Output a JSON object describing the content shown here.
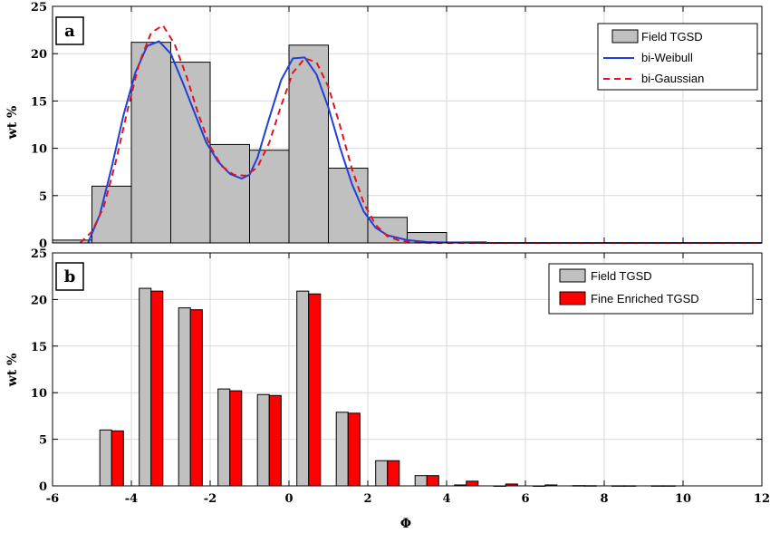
{
  "chart_data": [
    {
      "type": "bar",
      "panel_label": "a",
      "xlim": [
        -6,
        12
      ],
      "ylim": [
        0,
        25
      ],
      "xticks": [
        -6,
        -4,
        -2,
        0,
        2,
        4,
        6,
        8,
        10,
        12
      ],
      "yticks": [
        0,
        5,
        10,
        15,
        20,
        25
      ],
      "xlabel": "",
      "ylabel": "wt %",
      "grid": true,
      "legend_position": "top-right",
      "legend": [
        "Field TGSD",
        "bi-Weibull",
        "bi-Gaussian"
      ],
      "bins": {
        "name": "Field TGSD",
        "bin_width": 1,
        "bin_starts": [
          -6,
          -5,
          -4,
          -3,
          -2,
          -1,
          0,
          1,
          2,
          3,
          4
        ],
        "values": [
          0.3,
          6.0,
          21.2,
          19.1,
          10.4,
          9.8,
          20.9,
          7.9,
          2.7,
          1.1,
          0.1
        ],
        "color": "#c0c0c0"
      },
      "lines": [
        {
          "name": "bi-Weibull",
          "color": "#1f3fdc",
          "dash": "solid",
          "x": [
            -5.1,
            -4.8,
            -4.5,
            -4.2,
            -3.9,
            -3.6,
            -3.3,
            -3.0,
            -2.7,
            -2.4,
            -2.1,
            -1.8,
            -1.5,
            -1.2,
            -1.0,
            -0.8,
            -0.5,
            -0.2,
            0.1,
            0.4,
            0.7,
            1.0,
            1.3,
            1.6,
            1.9,
            2.2,
            2.5,
            3.0,
            3.5,
            4.0,
            5.0,
            7.0,
            9.0,
            12.0
          ],
          "y": [
            0,
            3.0,
            8.0,
            13.5,
            18.0,
            20.8,
            21.3,
            20.0,
            17.0,
            13.8,
            10.6,
            8.6,
            7.3,
            6.8,
            7.2,
            9.0,
            13.2,
            17.2,
            19.5,
            19.6,
            17.8,
            14.3,
            10.0,
            6.2,
            3.3,
            1.6,
            0.8,
            0.3,
            0.1,
            0.05,
            0,
            0,
            0,
            0
          ]
        },
        {
          "name": "bi-Gaussian",
          "color": "#e0141e",
          "dash": "dashed",
          "x": [
            -5.3,
            -5.0,
            -4.7,
            -4.4,
            -4.1,
            -3.8,
            -3.5,
            -3.2,
            -2.9,
            -2.6,
            -2.3,
            -2.0,
            -1.7,
            -1.4,
            -1.1,
            -0.8,
            -0.5,
            -0.2,
            0.1,
            0.4,
            0.7,
            1.0,
            1.3,
            1.6,
            1.9,
            2.2,
            2.5,
            2.8,
            3.2,
            3.8,
            5.0,
            8.0,
            12.0
          ],
          "y": [
            0,
            1.2,
            3.8,
            8.5,
            14.0,
            19.0,
            22.2,
            23.0,
            21.0,
            17.6,
            13.6,
            10.2,
            8.1,
            7.2,
            7.1,
            8.0,
            10.6,
            14.5,
            18.0,
            19.5,
            19.1,
            16.5,
            12.3,
            7.8,
            4.2,
            1.9,
            0.7,
            0.25,
            0.05,
            0,
            0,
            0,
            0
          ]
        }
      ]
    },
    {
      "type": "bar",
      "panel_label": "b",
      "xlim": [
        -6,
        12
      ],
      "ylim": [
        0,
        25
      ],
      "xticks": [
        -6,
        -4,
        -2,
        0,
        2,
        4,
        6,
        8,
        10,
        12
      ],
      "yticks": [
        0,
        5,
        10,
        15,
        20,
        25
      ],
      "xlabel": "Φ",
      "ylabel": "wt %",
      "grid": true,
      "legend_position": "top-right",
      "legend": [
        "Field TGSD",
        "Fine Enriched TGSD"
      ],
      "categories": [
        -4.5,
        -3.5,
        -2.5,
        -1.5,
        -0.5,
        0.5,
        1.5,
        2.5,
        3.5,
        4.5,
        5.5,
        6.5,
        7.5,
        8.5,
        9.5
      ],
      "series": [
        {
          "name": "Field TGSD",
          "color": "#c0c0c0",
          "values": [
            6.0,
            21.2,
            19.1,
            10.4,
            9.8,
            20.9,
            7.9,
            2.7,
            1.1,
            0.1,
            0,
            0,
            0.03,
            0.01,
            0.01
          ]
        },
        {
          "name": "Fine Enriched TGSD",
          "color": "#ff0000",
          "values": [
            5.9,
            20.9,
            18.9,
            10.2,
            9.7,
            20.6,
            7.8,
            2.7,
            1.1,
            0.5,
            0.2,
            0.1,
            0.02,
            0.01,
            0.01
          ]
        }
      ]
    }
  ]
}
